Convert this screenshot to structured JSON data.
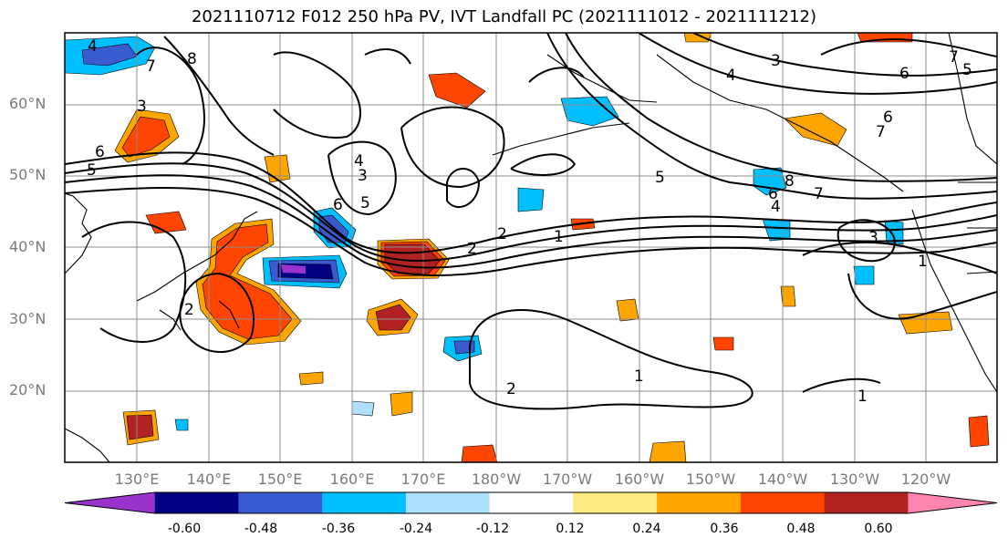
{
  "title": "2021110712 F012 250 hPa PV, IVT Landfall PC (2021111012 - 2021111212)",
  "lat_labels": [
    "60°N",
    "50°N",
    "40°N",
    "30°N",
    "20°N"
  ],
  "lon_labels": [
    "130°E",
    "140°E",
    "150°E",
    "160°E",
    "170°E",
    "180°W",
    "170°W",
    "160°W",
    "150°W",
    "140°W",
    "130°W",
    "120°W"
  ],
  "colorbar": {
    "colors": [
      "#9933cc",
      "#000080",
      "#3a5bd0",
      "#00bfff",
      "#b0e0ff",
      "#ffffff",
      "#ffeb80",
      "#ffa500",
      "#ff4500",
      "#b22222",
      "#ff85b0"
    ],
    "tick_labels": [
      "-0.60",
      "-0.48",
      "-0.36",
      "-0.24",
      "-0.12",
      "0.12",
      "0.24",
      "0.36",
      "0.48",
      "0.60"
    ]
  },
  "contour_labels": [
    "4",
    "7",
    "8",
    "3",
    "6",
    "5",
    "4",
    "3",
    "6",
    "5",
    "2",
    "1",
    "1",
    "2",
    "3",
    "5",
    "6",
    "7",
    "7",
    "6",
    "5",
    "4",
    "8",
    "6",
    "7",
    "4",
    "3",
    "1",
    "2",
    "2",
    "1"
  ]
}
